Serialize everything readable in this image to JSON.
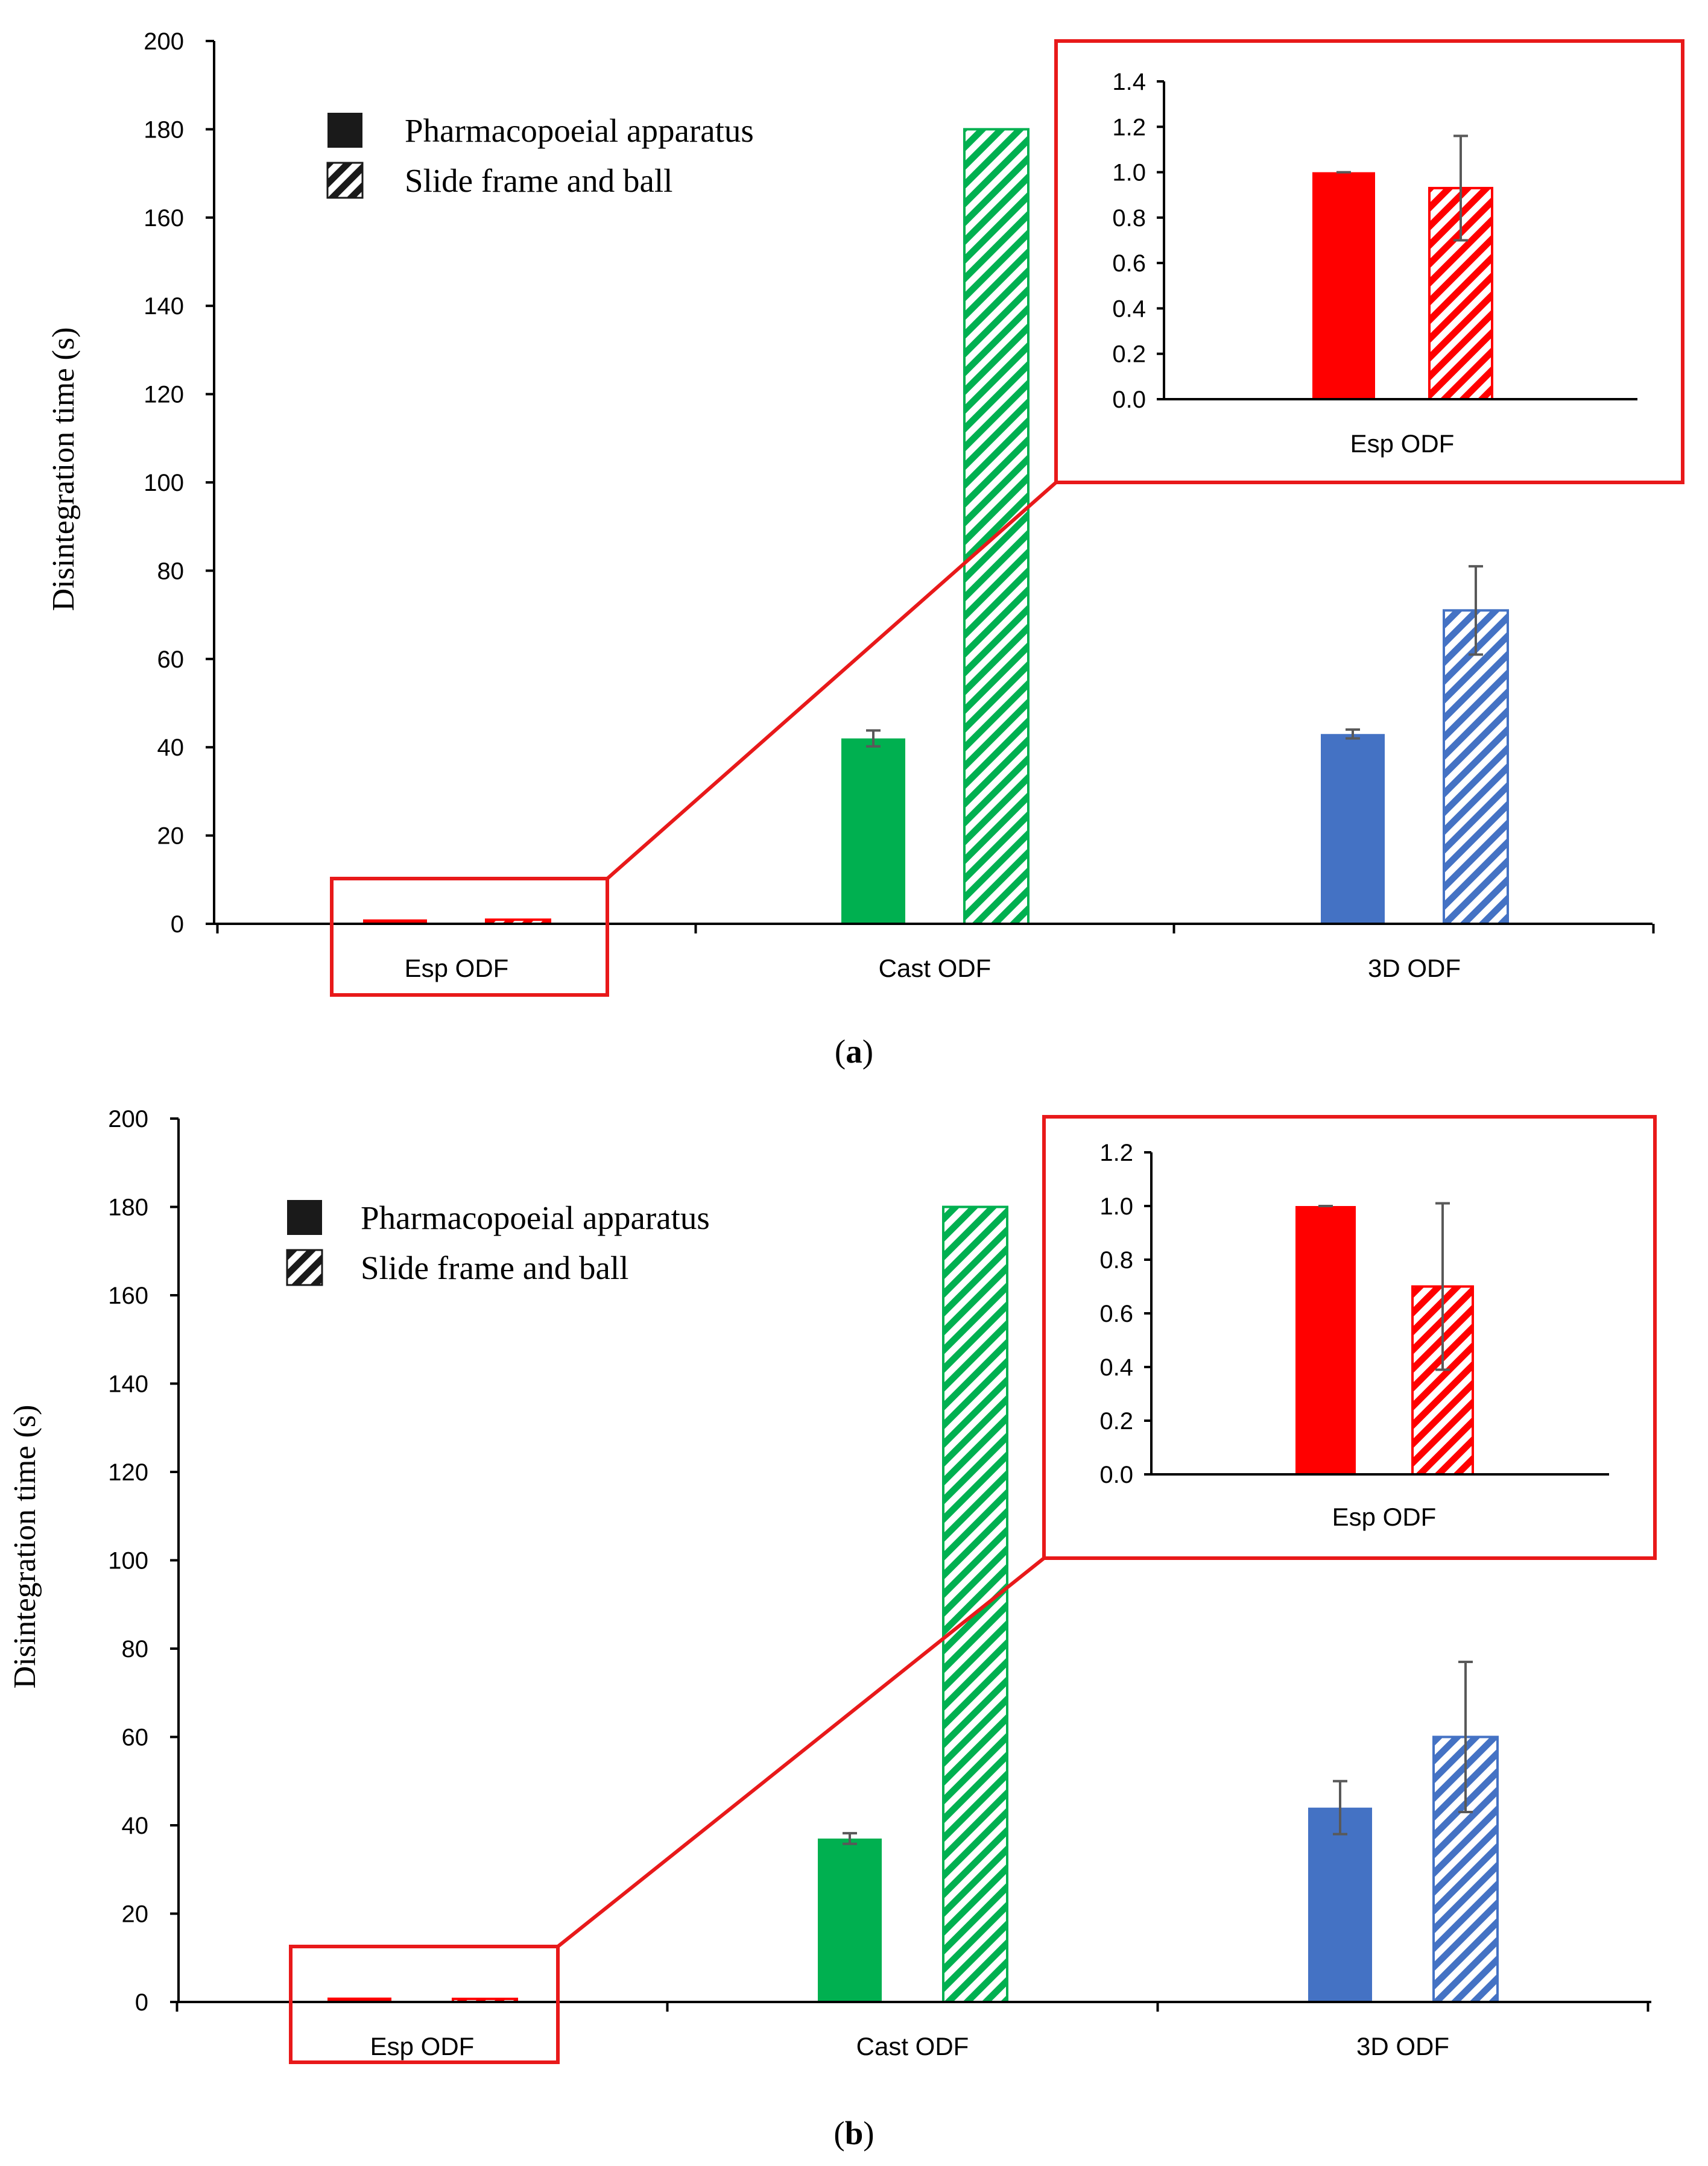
{
  "colors": {
    "esp": "#FF0000",
    "cast": "#00B050",
    "threed": "#4472C4",
    "axis": "#000000",
    "error_bar": "#595959",
    "highlight_box": "#E8191A",
    "legend_swatch": "#1A1A1A"
  },
  "legend": {
    "items": [
      {
        "label": "Pharmacopoeial apparatus",
        "fill": "solid"
      },
      {
        "label": "Slide frame and ball",
        "fill": "hatched"
      }
    ]
  },
  "chart_data": [
    {
      "panel_label": "a",
      "type": "bar",
      "ylabel": "Disintegration time (s)",
      "xlabel": "",
      "ylim": [
        0,
        200
      ],
      "yticks": [
        "0",
        "20",
        "40",
        "60",
        "80",
        "100",
        "120",
        "140",
        "160",
        "180",
        "200"
      ],
      "categories": [
        "Esp ODF",
        "Cast ODF",
        "3D ODF"
      ],
      "series": [
        {
          "name": "Pharmacopoeial apparatus",
          "fill": "solid",
          "values": [
            1.0,
            42,
            43
          ],
          "errors": [
            0,
            1.8,
            1.0
          ]
        },
        {
          "name": "Slide frame and ball",
          "fill": "hatched",
          "values": [
            0.93,
            180,
            71
          ],
          "errors": [
            0.23,
            0,
            10
          ]
        }
      ],
      "inset": {
        "ylim": [
          0,
          1.4
        ],
        "yticks": [
          "0.0",
          "0.2",
          "0.4",
          "0.6",
          "0.8",
          "1.0",
          "1.2",
          "1.4"
        ],
        "category": "Esp ODF",
        "values": [
          1.0,
          0.93
        ],
        "errors": [
          0,
          0.23
        ]
      }
    },
    {
      "panel_label": "b",
      "type": "bar",
      "ylabel": "Disintegration time (s)",
      "xlabel": "",
      "ylim": [
        0,
        200
      ],
      "yticks": [
        "0",
        "20",
        "40",
        "60",
        "80",
        "100",
        "120",
        "140",
        "160",
        "180",
        "200"
      ],
      "categories": [
        "Esp ODF",
        "Cast ODF",
        "3D ODF"
      ],
      "series": [
        {
          "name": "Pharmacopoeial apparatus",
          "fill": "solid",
          "values": [
            1.0,
            37,
            44
          ],
          "errors": [
            0,
            1.2,
            6
          ]
        },
        {
          "name": "Slide frame and ball",
          "fill": "hatched",
          "values": [
            0.7,
            180,
            60
          ],
          "errors": [
            0.31,
            0,
            17
          ]
        }
      ],
      "inset": {
        "ylim": [
          0,
          1.2
        ],
        "yticks": [
          "0.0",
          "0.2",
          "0.4",
          "0.6",
          "0.8",
          "1.0",
          "1.2"
        ],
        "category": "Esp ODF",
        "values": [
          1.0,
          0.7
        ],
        "errors": [
          0,
          0.31
        ]
      }
    }
  ]
}
